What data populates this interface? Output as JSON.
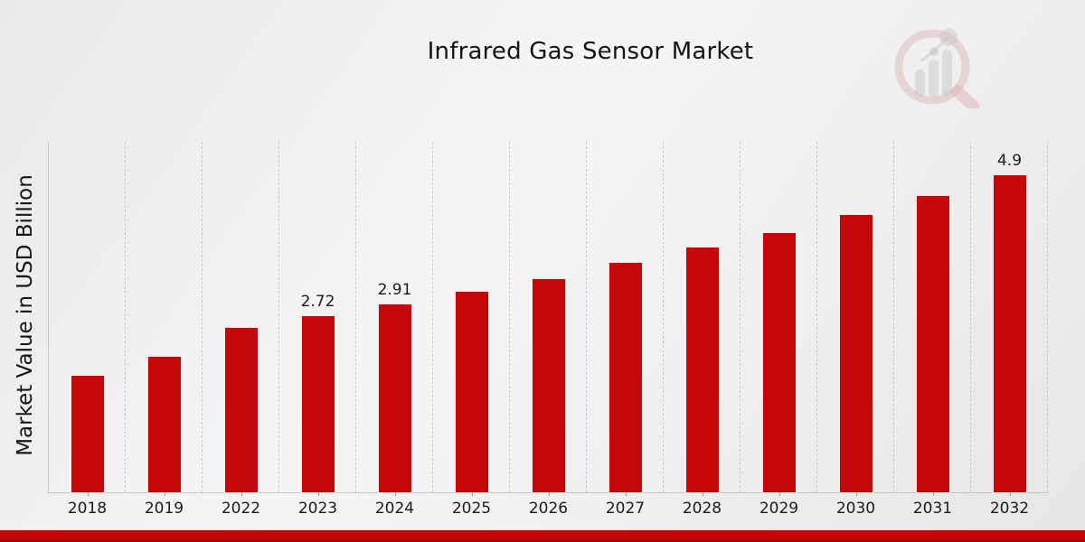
{
  "title": "Infrared Gas Sensor Market",
  "colors": {
    "bar": "#c50606",
    "bottom_strip": "#c50606",
    "gridline": "#c9c9c9",
    "axis_line": "#c6c6c6",
    "text": "#141414"
  },
  "watermark": {
    "icon": "magnifier-bar-chart-logo"
  },
  "chart_data": {
    "type": "bar",
    "title": "Infrared Gas Sensor Market",
    "xlabel": "",
    "ylabel": "Market Value in USD Billion",
    "categories": [
      "2018",
      "2019",
      "2022",
      "2023",
      "2024",
      "2025",
      "2026",
      "2027",
      "2028",
      "2029",
      "2030",
      "2031",
      "2032"
    ],
    "values": [
      1.8,
      2.09,
      2.54,
      2.72,
      2.91,
      3.1,
      3.3,
      3.55,
      3.78,
      4.01,
      4.29,
      4.58,
      4.9
    ],
    "data_labels": [
      "",
      "",
      "",
      "2.72",
      "2.91",
      "",
      "",
      "",
      "",
      "",
      "",
      "",
      "4.9"
    ],
    "ylim": [
      0,
      5.42
    ],
    "grid": "vertical-dashed-category-boundaries",
    "legend": "none",
    "bar_color": "#c50606"
  }
}
